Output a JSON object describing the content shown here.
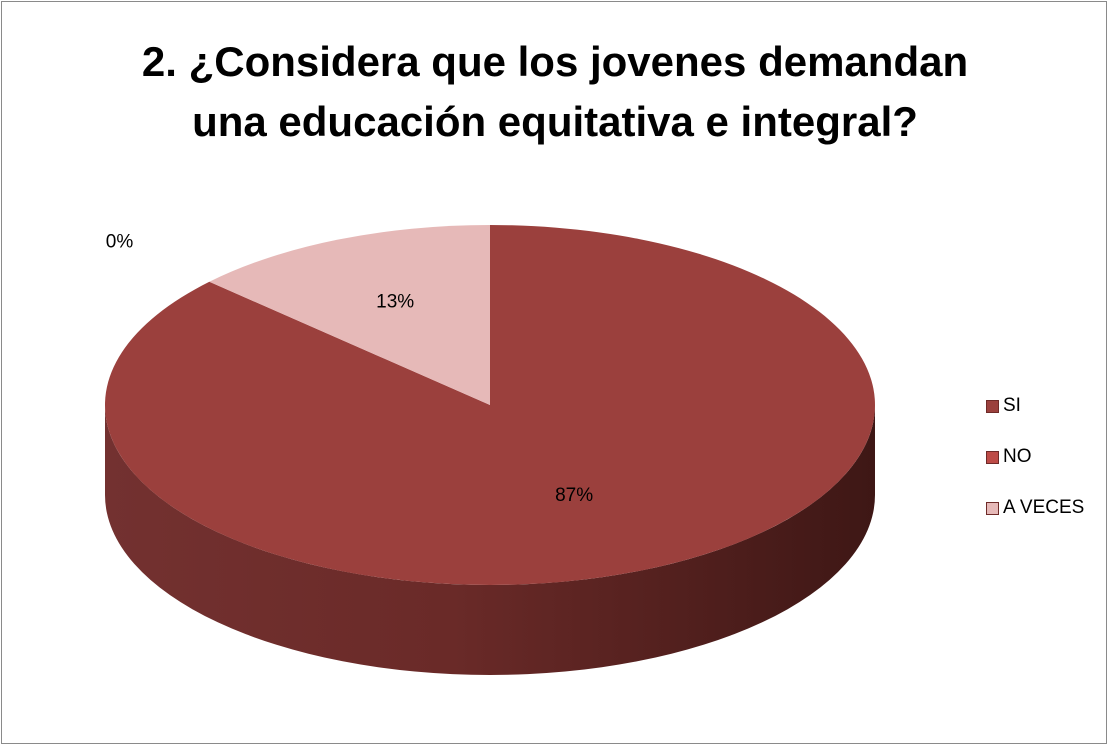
{
  "chart_data": {
    "type": "pie",
    "title_lines": [
      "2.  ¿Considera que los jovenes demandan",
      "una educación equitativa e integral?"
    ],
    "categories": [
      "SI",
      "NO",
      "A VECES"
    ],
    "values": [
      87,
      0,
      13
    ],
    "data_labels": [
      "87%",
      "0%",
      "13%"
    ],
    "colors": [
      "#9b403d",
      "#bd4b47",
      "#e6b9b8"
    ],
    "legend_position": "right",
    "style": "3d"
  }
}
